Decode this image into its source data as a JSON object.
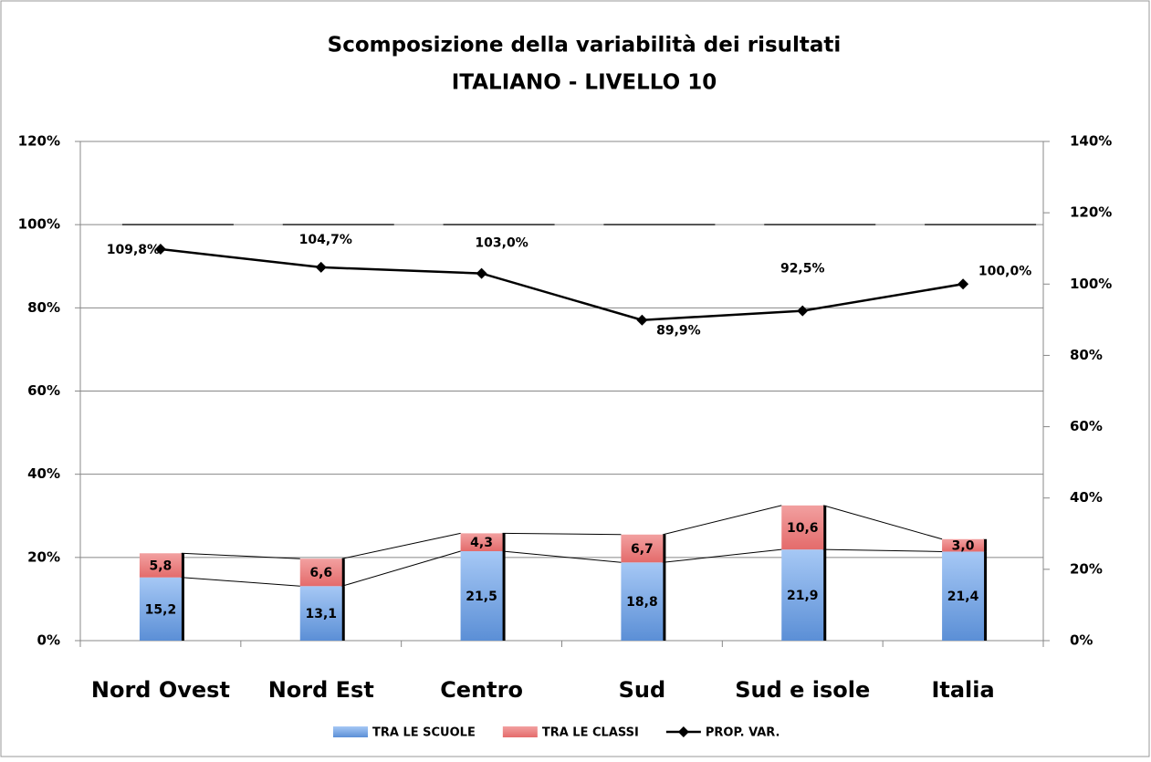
{
  "chart_data": {
    "type": "stacked-bar-line",
    "title": "Scomposizione della variabilità dei risultati",
    "subtitle": "ITALIANO - LIVELLO 10",
    "categories": [
      "Nord Ovest",
      "Nord Est",
      "Centro",
      "Sud",
      "Sud e isole",
      "Italia"
    ],
    "series": [
      {
        "name": "TRA LE SCUOLE",
        "color": "#5b8fd6",
        "values": [
          15.2,
          13.1,
          21.5,
          18.8,
          21.9,
          21.4
        ],
        "value_labels": [
          "15,2",
          "13,1",
          "21,5",
          "18,8",
          "21,9",
          "21,4"
        ]
      },
      {
        "name": "TRA LE CLASSI",
        "color": "#e46b6b",
        "values": [
          5.8,
          6.6,
          4.3,
          6.7,
          10.6,
          3.0
        ],
        "value_labels": [
          "5,8",
          "6,6",
          "4,3",
          "6,7",
          "10,6",
          "3,0"
        ]
      },
      {
        "name": "PROP. VAR.",
        "color": "#000000",
        "axis": "y2",
        "values": [
          109.8,
          104.7,
          103.0,
          89.9,
          92.5,
          100.0
        ],
        "value_labels": [
          "109,8%",
          "104,7%",
          "103,0%",
          "89,9%",
          "92,5%",
          "100,0%"
        ]
      }
    ],
    "ylim": [
      0,
      120
    ],
    "yticks": [
      {
        "value": 0,
        "label": "0%"
      },
      {
        "value": 20,
        "label": "20%"
      },
      {
        "value": 40,
        "label": "40%"
      },
      {
        "value": 60,
        "label": "60%"
      },
      {
        "value": 80,
        "label": "80%"
      },
      {
        "value": 100,
        "label": "100%"
      },
      {
        "value": 120,
        "label": "120%"
      }
    ],
    "y2lim": [
      0,
      140
    ],
    "y2ticks": [
      {
        "value": 0,
        "label": "0%"
      },
      {
        "value": 20,
        "label": "20%"
      },
      {
        "value": 40,
        "label": "40%"
      },
      {
        "value": 60,
        "label": "60%"
      },
      {
        "value": 80,
        "label": "80%"
      },
      {
        "value": 100,
        "label": "100%"
      },
      {
        "value": 120,
        "label": "120%"
      },
      {
        "value": 140,
        "label": "140%"
      }
    ],
    "reference_line": 100,
    "grid": true
  }
}
